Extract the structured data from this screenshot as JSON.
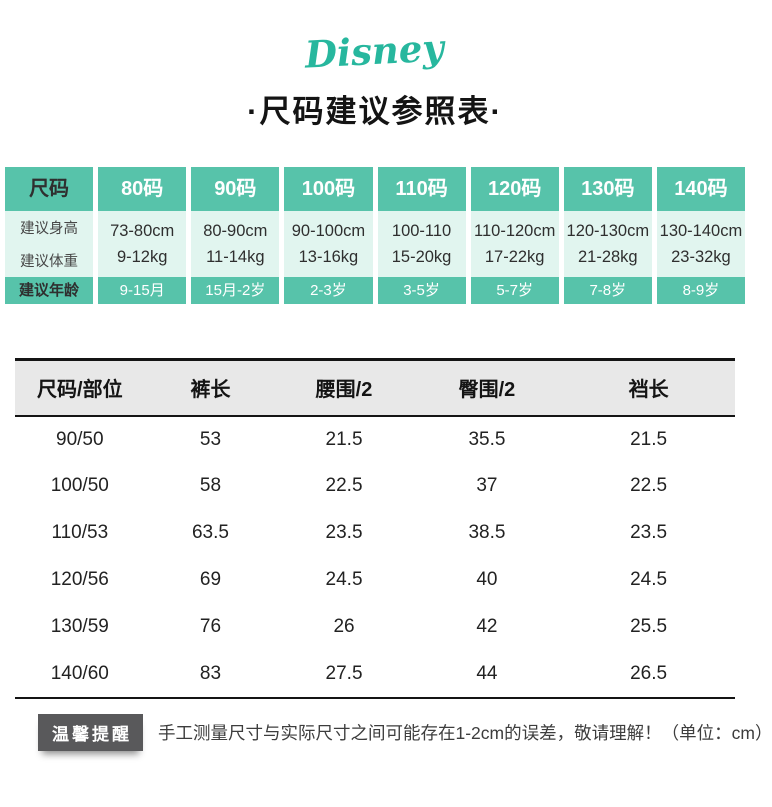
{
  "brand": {
    "logo_text": "Disney",
    "logo_color": "#27b79e"
  },
  "page_title": "·尺码建议参照表·",
  "size_guide": {
    "header_label": "尺码",
    "row_labels": {
      "height": "建议身高",
      "weight": "建议体重",
      "age": "建议年龄"
    },
    "columns": [
      {
        "size": "80码",
        "height": "73-80cm",
        "weight": "9-12kg",
        "age": "9-15月"
      },
      {
        "size": "90码",
        "height": "80-90cm",
        "weight": "11-14kg",
        "age": "15月-2岁"
      },
      {
        "size": "100码",
        "height": "90-100cm",
        "weight": "13-16kg",
        "age": "2-3岁"
      },
      {
        "size": "110码",
        "height": "100-110",
        "weight": "15-20kg",
        "age": "3-5岁"
      },
      {
        "size": "120码",
        "height": "110-120cm",
        "weight": "17-22kg",
        "age": "5-7岁"
      },
      {
        "size": "130码",
        "height": "120-130cm",
        "weight": "21-28kg",
        "age": "7-8岁"
      },
      {
        "size": "140码",
        "height": "130-140cm",
        "weight": "23-32kg",
        "age": "8-9岁"
      }
    ],
    "colors": {
      "teal": "#57c3aa",
      "mint": "#e1f5ef"
    }
  },
  "measurements": {
    "headers": [
      "尺码/部位",
      "裤长",
      "腰围/2",
      "臀围/2",
      "裆长"
    ],
    "rows": [
      [
        "90/50",
        "53",
        "21.5",
        "35.5",
        "21.5"
      ],
      [
        "100/50",
        "58",
        "22.5",
        "37",
        "22.5"
      ],
      [
        "110/53",
        "63.5",
        "23.5",
        "38.5",
        "23.5"
      ],
      [
        "120/56",
        "69",
        "24.5",
        "40",
        "24.5"
      ],
      [
        "130/59",
        "76",
        "26",
        "42",
        "25.5"
      ],
      [
        "140/60",
        "83",
        "27.5",
        "44",
        "26.5"
      ]
    ]
  },
  "reminder": {
    "badge": "温馨提醒",
    "text": "手工测量尺寸与实际尺寸之间可能存在1-2cm的误差，敬请理解！（单位：cm）"
  }
}
